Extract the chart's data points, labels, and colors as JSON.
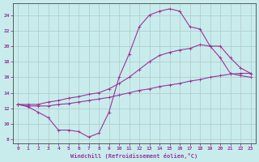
{
  "xlabel": "Windchill (Refroidissement éolien,°C)",
  "bg_color": "#c8ecec",
  "line_color": "#993399",
  "grid_color": "#aaaaaa",
  "xlim": [
    -0.5,
    23.5
  ],
  "ylim": [
    7.5,
    25.5
  ],
  "xticks": [
    0,
    1,
    2,
    3,
    4,
    5,
    6,
    7,
    8,
    9,
    10,
    11,
    12,
    13,
    14,
    15,
    16,
    17,
    18,
    19,
    20,
    21,
    22,
    23
  ],
  "yticks": [
    8,
    10,
    12,
    14,
    16,
    18,
    20,
    22,
    24
  ],
  "line1_x": [
    0,
    1,
    2,
    3,
    4,
    5,
    6,
    7,
    8,
    9,
    10,
    11,
    12,
    13,
    14,
    15,
    16,
    17,
    18,
    19,
    20,
    21,
    22,
    23
  ],
  "line1_y": [
    12.5,
    12.2,
    11.5,
    10.8,
    9.2,
    9.2,
    9.0,
    8.3,
    8.8,
    11.5,
    16.0,
    19.0,
    22.5,
    24.0,
    24.5,
    24.8,
    24.5,
    22.5,
    22.2,
    20.0,
    18.5,
    16.5,
    16.2,
    16.0
  ],
  "line2_x": [
    0,
    1,
    2,
    3,
    4,
    5,
    6,
    7,
    8,
    9,
    10,
    11,
    12,
    13,
    14,
    15,
    16,
    17,
    18,
    19,
    20,
    21,
    22,
    23
  ],
  "line2_y": [
    12.5,
    12.5,
    12.5,
    12.8,
    13.0,
    13.3,
    13.5,
    13.8,
    14.0,
    14.5,
    15.2,
    16.0,
    17.0,
    18.0,
    18.8,
    19.2,
    19.5,
    19.7,
    20.2,
    20.0,
    20.0,
    18.5,
    17.2,
    16.5
  ],
  "line3_x": [
    0,
    1,
    2,
    3,
    4,
    5,
    6,
    7,
    8,
    9,
    10,
    11,
    12,
    13,
    14,
    15,
    16,
    17,
    18,
    19,
    20,
    21,
    22,
    23
  ],
  "line3_y": [
    12.5,
    12.3,
    12.3,
    12.3,
    12.5,
    12.6,
    12.8,
    13.0,
    13.2,
    13.4,
    13.7,
    14.0,
    14.3,
    14.5,
    14.8,
    15.0,
    15.2,
    15.5,
    15.7,
    16.0,
    16.2,
    16.4,
    16.5,
    16.5
  ],
  "marker": "+",
  "marker_size": 3,
  "linewidth": 0.8
}
